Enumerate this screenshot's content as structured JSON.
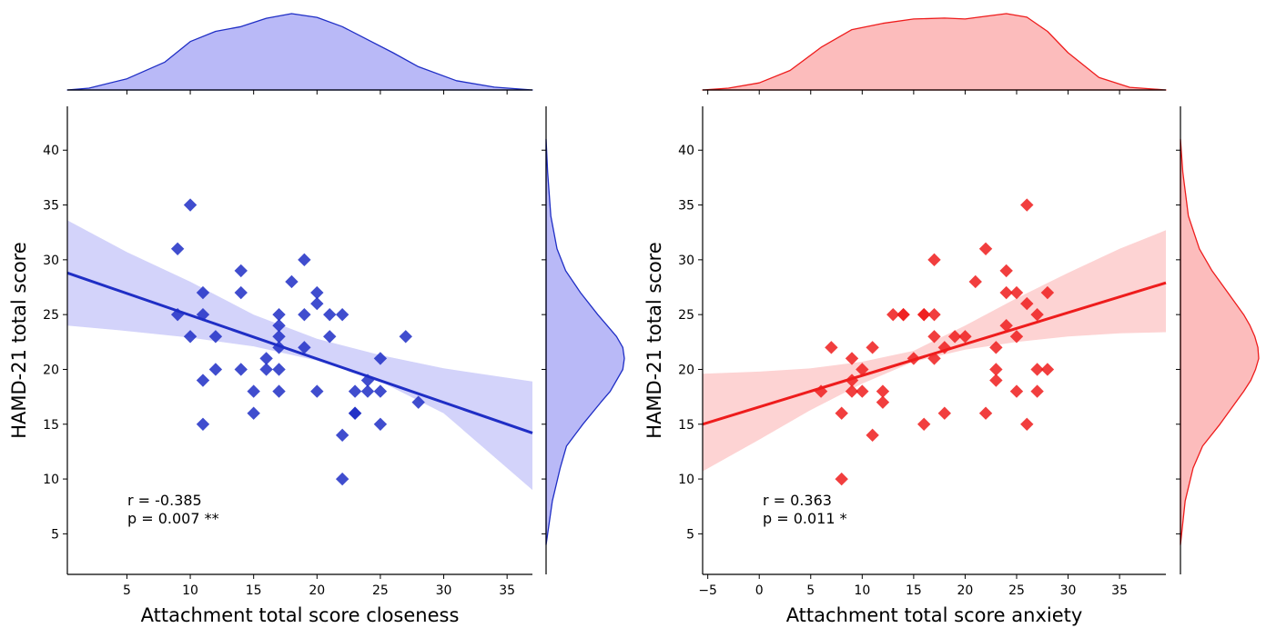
{
  "chart_data": [
    {
      "type": "scatter",
      "xlabel": "Attachment total score closeness",
      "ylabel": "HAMD-21 total score",
      "xlim": [
        0.3,
        37
      ],
      "ylim": [
        1.3,
        44
      ],
      "xticks": [
        5,
        10,
        15,
        20,
        25,
        30,
        35
      ],
      "yticks": [
        5,
        10,
        15,
        20,
        25,
        30,
        35,
        40
      ],
      "color": "#1f2ec5",
      "fill_color": "#b9b9f7",
      "band_color": "#d3d3fa",
      "marker": "diamond",
      "annotation": [
        "r = -0.385",
        "p = 0.007 **"
      ],
      "regression": {
        "x": [
          0.3,
          37
        ],
        "y": [
          28.8,
          14.2
        ]
      },
      "ci_band": {
        "x": [
          0.3,
          5,
          10,
          15,
          20,
          25,
          30,
          37
        ],
        "lower": [
          24.0,
          23.5,
          22.9,
          22.1,
          20.8,
          18.9,
          16.0,
          9.0
        ],
        "upper": [
          33.6,
          30.7,
          28.0,
          25.0,
          22.8,
          21.3,
          20.1,
          18.9
        ]
      },
      "x": [
        9,
        9,
        10,
        10,
        11,
        11,
        11,
        11,
        12,
        12,
        14,
        14,
        14,
        15,
        15,
        16,
        16,
        17,
        17,
        17,
        17,
        17,
        17,
        18,
        19,
        19,
        19,
        20,
        20,
        20,
        21,
        21,
        22,
        22,
        22,
        23,
        23,
        23,
        24,
        24,
        25,
        25,
        25,
        27,
        28
      ],
      "y": [
        31,
        25,
        35,
        23,
        27,
        25,
        19,
        15,
        23,
        20,
        29,
        27,
        20,
        18,
        16,
        21,
        20,
        25,
        24,
        23,
        22,
        20,
        18,
        28,
        30,
        25,
        22,
        27,
        26,
        18,
        25,
        23,
        25,
        14,
        10,
        18,
        16,
        16,
        19,
        18,
        21,
        18,
        15,
        23,
        17
      ],
      "top_density": {
        "x": [
          0.3,
          2,
          5,
          8,
          10,
          12,
          14,
          16,
          18,
          20,
          22,
          24,
          26,
          28,
          31,
          34,
          37
        ],
        "density": [
          0.0,
          0.002,
          0.012,
          0.03,
          0.052,
          0.063,
          0.068,
          0.077,
          0.082,
          0.078,
          0.068,
          0.054,
          0.04,
          0.025,
          0.01,
          0.003,
          0.0
        ]
      },
      "right_density": {
        "y": [
          4,
          8,
          11,
          13,
          15,
          17,
          18,
          20,
          21,
          22,
          23,
          24,
          25,
          27,
          29,
          31,
          34,
          38,
          41
        ],
        "density": [
          0.0,
          0.008,
          0.018,
          0.026,
          0.047,
          0.07,
          0.082,
          0.098,
          0.1,
          0.098,
          0.09,
          0.078,
          0.066,
          0.044,
          0.025,
          0.014,
          0.006,
          0.002,
          0.0
        ]
      }
    },
    {
      "type": "scatter",
      "xlabel": "Attachment total score anxiety",
      "ylabel": "HAMD-21 total score",
      "xlim": [
        -5.5,
        39.5
      ],
      "ylim": [
        1.3,
        44
      ],
      "xticks": [
        -5,
        0,
        5,
        10,
        15,
        20,
        25,
        30,
        35
      ],
      "xtick_labels": [
        "−5",
        "0",
        "5",
        "10",
        "15",
        "20",
        "25",
        "30",
        "35"
      ],
      "yticks": [
        5,
        10,
        15,
        20,
        25,
        30,
        35,
        40
      ],
      "color": "#ee1c1c",
      "fill_color": "#fcbcbc",
      "band_color": "#fdd3d3",
      "marker": "diamond",
      "annotation": [
        "r = 0.363",
        "p = 0.011 *"
      ],
      "regression": {
        "x": [
          -5.5,
          39.5
        ],
        "y": [
          15.0,
          27.9
        ]
      },
      "ci_band": {
        "x": [
          -5.5,
          0,
          5,
          10,
          15,
          20,
          25,
          30,
          35,
          39.5
        ],
        "lower": [
          10.7,
          13.6,
          16.3,
          18.7,
          20.7,
          21.8,
          22.5,
          23.0,
          23.3,
          23.4
        ],
        "upper": [
          19.6,
          19.8,
          20.1,
          20.7,
          21.7,
          24.0,
          26.5,
          28.8,
          31.0,
          32.7
        ]
      },
      "x": [
        6,
        7,
        8,
        8,
        9,
        9,
        9,
        10,
        10,
        11,
        11,
        12,
        12,
        13,
        14,
        14,
        15,
        16,
        16,
        16,
        17,
        17,
        17,
        17,
        18,
        18,
        19,
        20,
        21,
        22,
        22,
        23,
        23,
        23,
        24,
        24,
        24,
        25,
        25,
        25,
        26,
        26,
        26,
        27,
        27,
        27,
        28,
        28
      ],
      "y": [
        18,
        22,
        10,
        16,
        21,
        19,
        18,
        20,
        18,
        22,
        14,
        18,
        17,
        25,
        25,
        25,
        21,
        25,
        25,
        15,
        30,
        25,
        23,
        21,
        22,
        16,
        23,
        23,
        28,
        31,
        16,
        22,
        20,
        19,
        29,
        27,
        24,
        27,
        23,
        18,
        35,
        26,
        15,
        25,
        20,
        18,
        27,
        20
      ],
      "top_density": {
        "x": [
          -5.5,
          -3,
          0,
          3,
          6,
          9,
          12,
          15,
          18,
          20,
          22,
          24,
          26,
          28,
          30,
          33,
          36,
          39.5
        ],
        "density": [
          0.0,
          0.002,
          0.008,
          0.022,
          0.048,
          0.068,
          0.075,
          0.08,
          0.081,
          0.08,
          0.083,
          0.086,
          0.082,
          0.066,
          0.042,
          0.014,
          0.003,
          0.0
        ]
      },
      "right_density": {
        "y": [
          4,
          8,
          11,
          13,
          15,
          17,
          18,
          19,
          20,
          21,
          22,
          23,
          24,
          25,
          27,
          29,
          31,
          34,
          38,
          41
        ],
        "density": [
          0.0,
          0.006,
          0.016,
          0.028,
          0.05,
          0.07,
          0.08,
          0.089,
          0.095,
          0.099,
          0.098,
          0.094,
          0.088,
          0.08,
          0.06,
          0.04,
          0.024,
          0.01,
          0.003,
          0.0
        ]
      }
    }
  ]
}
